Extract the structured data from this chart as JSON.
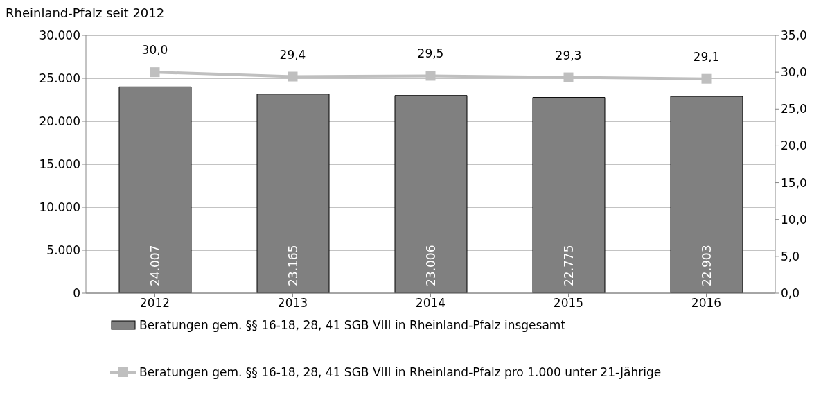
{
  "chart_data": {
    "type": "bar",
    "title": "Rheinland-Pfalz seit 2012",
    "categories": [
      "2012",
      "2013",
      "2014",
      "2015",
      "2016"
    ],
    "series": [
      {
        "name": "Beratungen gem. §§ 16-18, 28, 41 SGB VIII in Rheinland-Pfalz insgesamt",
        "color": "#808080",
        "values": [
          24007,
          23165,
          23006,
          22775,
          22903
        ],
        "value_labels": [
          "24.007",
          "23.165",
          "23.006",
          "22.775",
          "22.903"
        ]
      },
      {
        "name": "Beratungen gem. §§ 16-18, 28, 41 SGB VIII in Rheinland-Pfalz pro 1.000 unter 21-Jährige",
        "type": "line",
        "axis": "y2",
        "color": "#bfbfbf",
        "marker": "square",
        "values": [
          30.0,
          29.4,
          29.5,
          29.3,
          29.1
        ],
        "value_labels": [
          "30,0",
          "29,4",
          "29,5",
          "29,3",
          "29,1"
        ]
      }
    ],
    "ylim": [
      0,
      30000
    ],
    "yticks": [
      {
        "value": 0,
        "label": "0"
      },
      {
        "value": 5000,
        "label": "5.000"
      },
      {
        "value": 10000,
        "label": "10.000"
      },
      {
        "value": 15000,
        "label": "15.000"
      },
      {
        "value": 20000,
        "label": "20.000"
      },
      {
        "value": 25000,
        "label": "25.000"
      },
      {
        "value": 30000,
        "label": "30.000"
      }
    ],
    "y2lim": [
      0,
      35
    ],
    "y2ticks": [
      {
        "value": 0,
        "label": "0,0"
      },
      {
        "value": 5,
        "label": "5,0"
      },
      {
        "value": 10,
        "label": "10,0"
      },
      {
        "value": 15,
        "label": "15,0"
      },
      {
        "value": 20,
        "label": "20,0"
      },
      {
        "value": 25,
        "label": "25,0"
      },
      {
        "value": 30,
        "label": "30,0"
      },
      {
        "value": 35,
        "label": "35,0"
      }
    ],
    "grid": "y",
    "legend": "bottom"
  }
}
